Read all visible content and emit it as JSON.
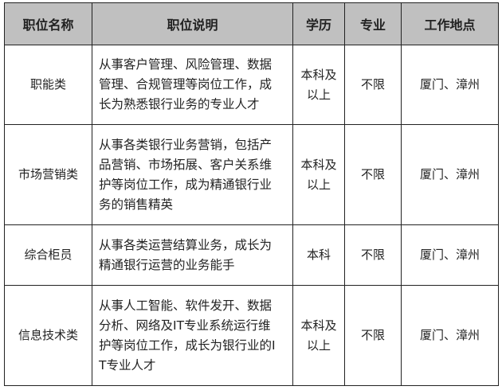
{
  "headers": [
    "职位名称",
    "职位说明",
    "学历",
    "专业",
    "工作地点"
  ],
  "rows": [
    {
      "name": "职能类",
      "desc": "从事客户管理、风险管理、数据管理、合规管理等岗位工作，成长为熟悉银行业务的专业人才",
      "edu": "本科及以上",
      "major": "不限",
      "loc": "厦门、漳州"
    },
    {
      "name": "市场营销类",
      "desc": "从事各类银行业务营销，包括产品营销、市场拓展、客户关系维护等岗位工作，成为精通银行业务的销售精英",
      "edu": "本科及以上",
      "major": "不限",
      "loc": "厦门、漳州"
    },
    {
      "name": "综合柜员",
      "desc": "从事各类运营结算业务，成长为精通银行运营的业务能手",
      "edu": "本科",
      "major": "不限",
      "loc": "厦门、漳州"
    },
    {
      "name": "信息技术类",
      "desc": "从事人工智能、软件发开、数据分析、网络及IT专业系统运行维护等岗位工作，成长为银行业的IT专业人才",
      "edu": "本科及以上",
      "major": "不限",
      "loc": "厦门、漳州"
    }
  ]
}
